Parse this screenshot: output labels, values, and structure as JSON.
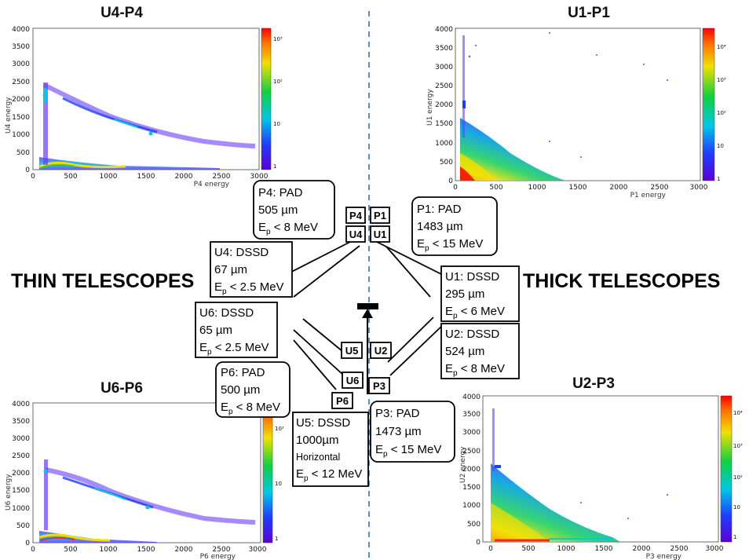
{
  "labels": {
    "thin": "THIN TELESCOPES",
    "thick": "THICK TELESCOPES"
  },
  "plots": [
    {
      "id": "u4p4",
      "title": "U4-P4",
      "xlabel": "P4 energy",
      "ylabel": "U4 energy",
      "xticks": [
        "0",
        "500",
        "1000",
        "1500",
        "2000",
        "2500",
        "3000"
      ],
      "yticks": [
        "0",
        "500",
        "1000",
        "1500",
        "2000",
        "2500",
        "3000",
        "3500",
        "4000"
      ],
      "cbar": [
        "1",
        "10",
        "10²",
        "10³"
      ]
    },
    {
      "id": "u1p1",
      "title": "U1-P1",
      "xlabel": "P1 energy",
      "ylabel": "U1 energy",
      "xticks": [
        "0",
        "500",
        "1000",
        "1500",
        "2000",
        "2500",
        "3000"
      ],
      "yticks": [
        "0",
        "500",
        "1000",
        "1500",
        "2000",
        "2500",
        "3000",
        "3500",
        "4000"
      ],
      "cbar": [
        "1",
        "10",
        "10²",
        "10³",
        "10⁴"
      ]
    },
    {
      "id": "u6p6",
      "title": "U6-P6",
      "xlabel": "P6 energy",
      "ylabel": "U6 energy",
      "xticks": [
        "0",
        "500",
        "1000",
        "1500",
        "2000",
        "2500",
        "3000"
      ],
      "yticks": [
        "0",
        "500",
        "1000",
        "1500",
        "2000",
        "2500",
        "3000",
        "3500",
        "4000"
      ],
      "cbar": [
        "1",
        "10",
        "10²"
      ]
    },
    {
      "id": "u2p3",
      "title": "U2-P3",
      "xlabel": "P3 energy",
      "ylabel": "U2 energy",
      "xticks": [
        "0",
        "500",
        "1000",
        "1500",
        "2000",
        "2500",
        "3000"
      ],
      "yticks": [
        "0",
        "500",
        "1000",
        "1500",
        "2000",
        "2500",
        "3000",
        "3500",
        "4000"
      ],
      "cbar": [
        "1",
        "10",
        "10²",
        "10³",
        "10⁴"
      ]
    }
  ],
  "detectors": {
    "p4": "P4",
    "u4": "U4",
    "p1": "P1",
    "u1": "U1",
    "u5": "U5",
    "u2": "U2",
    "u6": "U6",
    "p3": "P3",
    "p6": "P6"
  },
  "boxes": {
    "p4": {
      "l1": "P4: PAD",
      "l2": "505 µm",
      "l3a": "E",
      "l3s": "p",
      "l3b": " < 8 MeV"
    },
    "p1": {
      "l1": "P1: PAD",
      "l2": "1483 µm",
      "l3a": "E",
      "l3s": "p",
      "l3b": " < 15 MeV"
    },
    "u4": {
      "l1": "U4: DSSD",
      "l2": "67 µm",
      "l3a": "E",
      "l3s": "p",
      "l3b": " < 2.5 MeV"
    },
    "u1": {
      "l1": "U1: DSSD",
      "l2": "295 µm",
      "l3a": "E",
      "l3s": "p",
      "l3b": " < 6 MeV"
    },
    "u6": {
      "l1": "U6: DSSD",
      "l2": "65 µm",
      "l3a": "E",
      "l3s": "p",
      "l3b": " < 2.5 MeV"
    },
    "u2": {
      "l1": "U2: DSSD",
      "l2": "524 µm",
      "l3a": "E",
      "l3s": "p",
      "l3b": " < 8 MeV"
    },
    "p6": {
      "l1": "P6: PAD",
      "l2": "500 µm",
      "l3a": "E",
      "l3s": "p",
      "l3b": " < 8 MeV"
    },
    "p3": {
      "l1": "P3: PAD",
      "l2": "1473 µm",
      "l3a": "E",
      "l3s": "p",
      "l3b": " < 15 MeV"
    },
    "u5": {
      "l1": "U5: DSSD",
      "l2": "1000µm",
      "l2b": "Horizontal",
      "l3a": "E",
      "l3s": "p",
      "l3b": " < 12 MeV"
    }
  }
}
